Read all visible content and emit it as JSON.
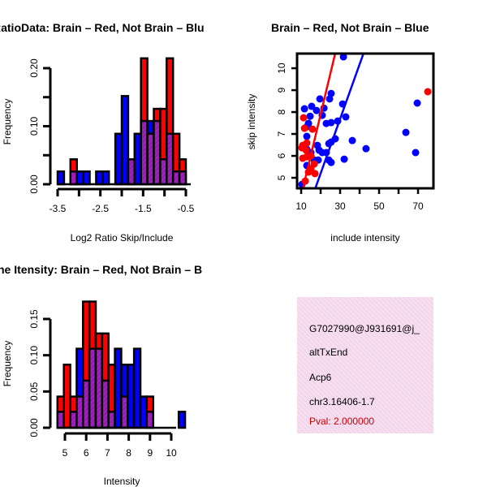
{
  "chart_data": [
    {
      "type": "bar",
      "title": "RatioData: Brain – Red, Not Brain – Blu",
      "xlabel": "Log2 Ratio Skip/Include",
      "ylabel": "Frequency",
      "x_start": -3.5,
      "bin_width": 0.15,
      "xlim": [
        -3.5,
        -0.5
      ],
      "ylim": [
        0,
        0.2
      ],
      "xticks": [
        -3.5,
        -3.0,
        -2.5,
        -2.0,
        -1.5,
        -1.0,
        -0.5
      ],
      "xtick_labels": [
        "-3.5",
        "",
        "-2.5",
        "",
        "-1.5",
        "",
        "-0.5"
      ],
      "yticks": [
        0,
        0.05,
        0.1,
        0.15,
        0.2
      ],
      "ytick_labels": [
        "0.00",
        "",
        "0.10",
        "",
        "0.20"
      ],
      "series": [
        {
          "name": "Brain",
          "color": "#ff0000",
          "values": [
            0,
            0,
            0.043,
            0,
            0,
            0,
            0,
            0,
            0,
            0,
            0,
            0.043,
            0,
            0.217,
            0.087,
            0.13,
            0.13,
            0.217,
            0.087,
            0.043
          ]
        },
        {
          "name": "Not Brain",
          "color": "#0000ff",
          "values": [
            0.022,
            0,
            0.022,
            0.022,
            0.022,
            0,
            0.022,
            0.022,
            0,
            0.087,
            0.152,
            0.043,
            0.087,
            0.109,
            0.109,
            0.109,
            0.043,
            0.087,
            0.022,
            0.022
          ]
        }
      ],
      "overlap_color": "#a020c0"
    },
    {
      "type": "scatter",
      "title": "Brain – Red, Not Brain – Blue",
      "xlabel": "include intensity",
      "ylabel": "skip intensity",
      "xlim": [
        7.9,
        77.9
      ],
      "ylim": [
        4.52,
        10.67
      ],
      "xticks": [
        10,
        20,
        30,
        40,
        50,
        60,
        70
      ],
      "xtick_labels": [
        "10",
        "",
        "30",
        "",
        "50",
        "",
        "70"
      ],
      "yticks": [
        5,
        6,
        7,
        8,
        9,
        10
      ],
      "ytick_labels": [
        "5",
        "6",
        "7",
        "8",
        "9",
        "10"
      ],
      "series": [
        {
          "name": "Not Brain",
          "color": "#0000ff",
          "points": [
            [
              31.7,
              10.52
            ],
            [
              25.4,
              8.85
            ],
            [
              24.6,
              8.6
            ],
            [
              19.6,
              8.6
            ],
            [
              31.3,
              8.37
            ],
            [
              11.7,
              8.15
            ],
            [
              15.4,
              8.26
            ],
            [
              17.9,
              8.07
            ],
            [
              21.7,
              8.18
            ],
            [
              20.8,
              7.85
            ],
            [
              32.9,
              7.78
            ],
            [
              14.6,
              7.81
            ],
            [
              13.75,
              7.48
            ],
            [
              12.9,
              7.33
            ],
            [
              22.9,
              7.48
            ],
            [
              25.4,
              7.52
            ],
            [
              28.75,
              7.59
            ],
            [
              12.9,
              6.89
            ],
            [
              27.5,
              6.78
            ],
            [
              25.4,
              6.63
            ],
            [
              24.2,
              6.56
            ],
            [
              36.25,
              6.7
            ],
            [
              18.3,
              6.48
            ],
            [
              12.9,
              6.3
            ],
            [
              43.3,
              6.33
            ],
            [
              63.75,
              7.07
            ],
            [
              69.6,
              8.41
            ],
            [
              68.75,
              6.15
            ],
            [
              32.1,
              5.85
            ],
            [
              22.9,
              6.15
            ],
            [
              20.8,
              6.15
            ],
            [
              16.7,
              5.81
            ],
            [
              18.75,
              5.81
            ],
            [
              24.2,
              5.81
            ],
            [
              25.4,
              5.7
            ],
            [
              12.9,
              5.56
            ],
            [
              10.4,
              4.7
            ],
            [
              15,
              6.15
            ],
            [
              19.2,
              6.26
            ]
          ],
          "fit": {
            "slope": 0.249,
            "intercept": 0.22
          }
        },
        {
          "name": "Brain",
          "color": "#ff0000",
          "points": [
            [
              75,
              8.93
            ],
            [
              11.25,
              7.74
            ],
            [
              11.7,
              7.26
            ],
            [
              15.8,
              7.22
            ],
            [
              10.8,
              6.48
            ],
            [
              12.9,
              6.59
            ],
            [
              10.4,
              6.37
            ],
            [
              10.8,
              5.89
            ],
            [
              12.9,
              5.96
            ],
            [
              15,
              6.0
            ],
            [
              15,
              5.41
            ],
            [
              17.1,
              5.19
            ],
            [
              13.75,
              5.26
            ],
            [
              12.1,
              4.85
            ],
            [
              16.7,
              5.63
            ],
            [
              12.5,
              6.26
            ]
          ],
          "fit": {
            "slope": 0.372,
            "intercept": 0.46
          }
        }
      ]
    },
    {
      "type": "bar",
      "title": "ne Itensity: Brain – Red, Not Brain – B",
      "xlabel": "Intensity",
      "ylabel": "Frequency",
      "x_start": 4.65,
      "bin_width": 0.3,
      "xlim": [
        5,
        10
      ],
      "ylim": [
        0,
        0.15
      ],
      "xticks": [
        5,
        6,
        7,
        8,
        9,
        10
      ],
      "xtick_labels": [
        "5",
        "6",
        "7",
        "8",
        "9",
        "10"
      ],
      "yticks": [
        0,
        0.05,
        0.1,
        0.15
      ],
      "ytick_labels": [
        "0.00",
        "0.05",
        "0.10",
        "0.15"
      ],
      "series": [
        {
          "name": "Brain",
          "color": "#ff0000",
          "values": [
            0.043,
            0.087,
            0.043,
            0.043,
            0.174,
            0.174,
            0.13,
            0.13,
            0.087,
            0,
            0.043,
            0,
            0,
            0,
            0.043,
            0,
            0,
            0,
            0,
            0
          ]
        },
        {
          "name": "Not Brain",
          "color": "#0000ff",
          "values": [
            0.022,
            0,
            0.022,
            0.109,
            0.065,
            0.109,
            0.109,
            0.065,
            0.022,
            0.109,
            0.087,
            0.087,
            0.109,
            0.043,
            0.022,
            0,
            0,
            0,
            0,
            0.022
          ]
        }
      ],
      "overlap_color": "#a020c0"
    }
  ],
  "info_panel": {
    "id": "G7027990@J931691@j_",
    "event_type": "altTxEnd",
    "gene": "Acp6",
    "location": "chr3.16406-1.7",
    "pval": "Pval: 2.000000",
    "pval_color": "#cc0000",
    "background": "#f5d8f0"
  }
}
